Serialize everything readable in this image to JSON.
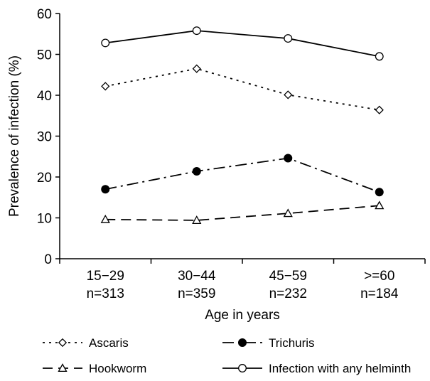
{
  "chart_data": {
    "type": "line",
    "title": "",
    "xlabel": "Age in years",
    "ylabel": "Prevalence of infection (%)",
    "ylim": [
      0,
      60
    ],
    "yticks": [
      "0",
      "10",
      "20",
      "30",
      "40",
      "50",
      "60"
    ],
    "categories": [
      {
        "age": "15−29",
        "n": "n=313"
      },
      {
        "age": "30−44",
        "n": "n=359"
      },
      {
        "age": "45−59",
        "n": "n=232"
      },
      {
        "age": ">=60",
        "n": "n=184"
      }
    ],
    "grid": false,
    "legend_position": "bottom",
    "series": [
      {
        "name": "Ascaris",
        "key": "ascaris",
        "values": [
          42.2,
          46.5,
          40.1,
          36.4
        ],
        "line_style": "dotted",
        "marker": "open-diamond",
        "color": "#000000"
      },
      {
        "name": "Trichuris",
        "key": "trichuris",
        "values": [
          17.0,
          21.4,
          24.6,
          16.3
        ],
        "line_style": "dash-dot",
        "marker": "filled-circle",
        "color": "#000000"
      },
      {
        "name": "Hookworm",
        "key": "hookworm",
        "values": [
          9.6,
          9.4,
          11.1,
          13.0
        ],
        "line_style": "dashed",
        "marker": "open-triangle",
        "color": "#000000"
      },
      {
        "name": "Infection with any helminth",
        "key": "any-helminth",
        "values": [
          52.8,
          55.8,
          53.9,
          49.5
        ],
        "line_style": "solid",
        "marker": "open-circle",
        "color": "#000000"
      }
    ]
  }
}
